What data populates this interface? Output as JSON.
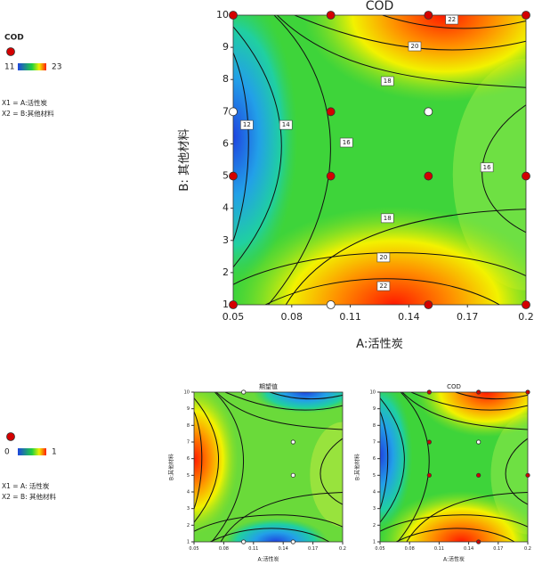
{
  "chart_data": [
    {
      "type": "contour",
      "title": "COD",
      "x_label": "A:活性炭",
      "y_label": "B: 其他材料",
      "xlim": [
        0.05,
        0.2
      ],
      "xticks": [
        0.05,
        0.08,
        0.11,
        0.14,
        0.17,
        0.2
      ],
      "ylim": [
        1,
        10
      ],
      "yticks": [
        1,
        2,
        3,
        4,
        5,
        6,
        7,
        8,
        9,
        10
      ],
      "points": {
        "x": [
          0.05,
          0.1,
          0.15,
          0.2,
          0.05,
          0.1,
          0.15,
          0.05,
          0.1,
          0.15,
          0.2,
          0.05,
          0.1,
          0.15,
          0.2
        ],
        "y": [
          10,
          10,
          10,
          10,
          7,
          7,
          7,
          5,
          5,
          5,
          5,
          1,
          1,
          1,
          1
        ],
        "colors": [
          "#d40000",
          "#d40000",
          "#d40000",
          "#d40000",
          "#ffffff",
          "#d40000",
          "#ffffff",
          "#d40000",
          "#d40000",
          "#d40000",
          "#d40000",
          "#d40000",
          "#ffffff",
          "#d40000",
          "#d40000"
        ]
      },
      "contour_labels": [
        {
          "level": 22,
          "x": 0.162,
          "y": 9.86
        },
        {
          "level": 20,
          "x": 0.143,
          "y": 9.03
        },
        {
          "level": 18,
          "x": 0.129,
          "y": 7.95
        },
        {
          "level": 12,
          "x": 0.057,
          "y": 6.59
        },
        {
          "level": 14,
          "x": 0.077,
          "y": 6.59
        },
        {
          "level": 16,
          "x": 0.108,
          "y": 6.04
        },
        {
          "level": 16,
          "x": 0.18,
          "y": 5.27
        },
        {
          "level": 18,
          "x": 0.129,
          "y": 3.69
        },
        {
          "level": 20,
          "x": 0.127,
          "y": 2.47
        },
        {
          "level": 22,
          "x": 0.127,
          "y": 1.58
        }
      ],
      "legend": {
        "title": "COD",
        "color_range": [
          11,
          23
        ],
        "low_color": "#1f3fd8",
        "high_color": "#e02020",
        "factors": [
          "X1 = A:活性炭",
          "X2 = B:其他材料"
        ]
      }
    },
    {
      "type": "contour",
      "title": "期望值",
      "x_label": "A:活性炭",
      "y_label": "B:其他材料",
      "xlim": [
        0.05,
        0.2
      ],
      "xticks": [
        0.05,
        0.08,
        0.11,
        0.14,
        0.17,
        0.2
      ],
      "ylim": [
        1,
        10
      ],
      "yticks": [
        1,
        2,
        3,
        4,
        5,
        6,
        7,
        8,
        9,
        10
      ],
      "points": {
        "x": [
          0.1,
          0.15,
          0.15,
          0.15,
          0.1
        ],
        "y": [
          10,
          7,
          5,
          1,
          1
        ],
        "colors": [
          "#ffffff",
          "#ffffff",
          "#ffffff",
          "#ffffff",
          "#ffffff"
        ]
      },
      "legend": {
        "color_range": [
          0,
          1
        ],
        "low_color": "#1f3fd8",
        "high_color": "#e02020",
        "factors": [
          "X1 = A: 活性炭",
          "X2 = B: 其他材料"
        ]
      }
    },
    {
      "type": "contour",
      "title": "COD",
      "x_label": "A:活性炭",
      "y_label": "B:其他材料",
      "xlim": [
        0.05,
        0.2
      ],
      "xticks": [
        0.05,
        0.08,
        0.11,
        0.14,
        0.17,
        0.2
      ],
      "ylim": [
        1,
        10
      ],
      "yticks": [
        1,
        2,
        3,
        4,
        5,
        6,
        7,
        8,
        9,
        10
      ],
      "points": {
        "x": [
          0.1,
          0.15,
          0.2,
          0.1,
          0.15,
          0.1,
          0.15,
          0.2,
          0.15
        ],
        "y": [
          10,
          10,
          10,
          7,
          7,
          5,
          5,
          5,
          1
        ],
        "colors": [
          "#d40000",
          "#d40000",
          "#d40000",
          "#d40000",
          "#ffffff",
          "#d40000",
          "#d40000",
          "#d40000",
          "#d40000"
        ]
      }
    }
  ]
}
